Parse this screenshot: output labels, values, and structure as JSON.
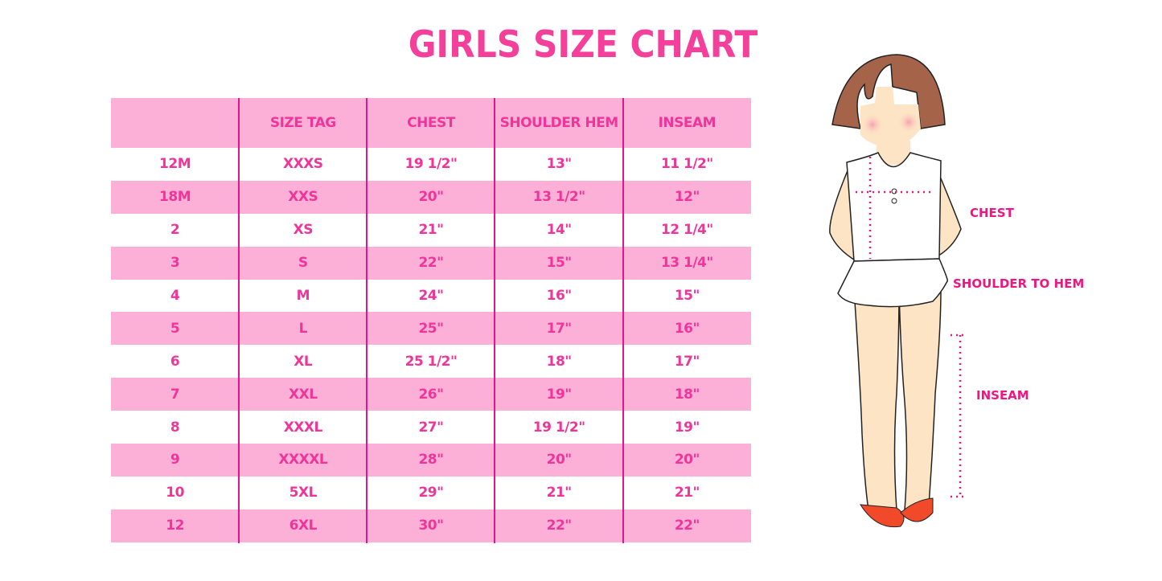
{
  "title": "GIRLS SIZE CHART",
  "colors": {
    "accent": "#f0359a",
    "row_pink": "#fdb0d7",
    "divider": "#e3158a"
  },
  "table": {
    "headers": [
      "",
      "SIZE TAG",
      "CHEST",
      "SHOULDER HEM",
      "INSEAM"
    ],
    "rows": [
      [
        "12M",
        "XXXS",
        "19 1/2\"",
        "13\"",
        "11 1/2\""
      ],
      [
        "18M",
        "XXS",
        "20\"",
        "13 1/2\"",
        "12\""
      ],
      [
        "2",
        "XS",
        "21\"",
        "14\"",
        "12 1/4\""
      ],
      [
        "3",
        "S",
        "22\"",
        "15\"",
        "13 1/4\""
      ],
      [
        "4",
        "M",
        "24\"",
        "16\"",
        "15\""
      ],
      [
        "5",
        "L",
        "25\"",
        "17\"",
        "16\""
      ],
      [
        "6",
        "XL",
        "25 1/2\"",
        "18\"",
        "17\""
      ],
      [
        "7",
        "XXL",
        "26\"",
        "19\"",
        "18\""
      ],
      [
        "8",
        "XXXL",
        "27\"",
        "19 1/2\"",
        "19\""
      ],
      [
        "9",
        "XXXXL",
        "28\"",
        "20\"",
        "20\""
      ],
      [
        "10",
        "5XL",
        "29\"",
        "21\"",
        "21\""
      ],
      [
        "12",
        "6XL",
        "30\"",
        "22\"",
        "22\""
      ]
    ]
  },
  "figure": {
    "labels": {
      "chest": "CHEST",
      "shoulder": "SHOULDER TO HEM",
      "inseam": "INSEAM"
    }
  }
}
